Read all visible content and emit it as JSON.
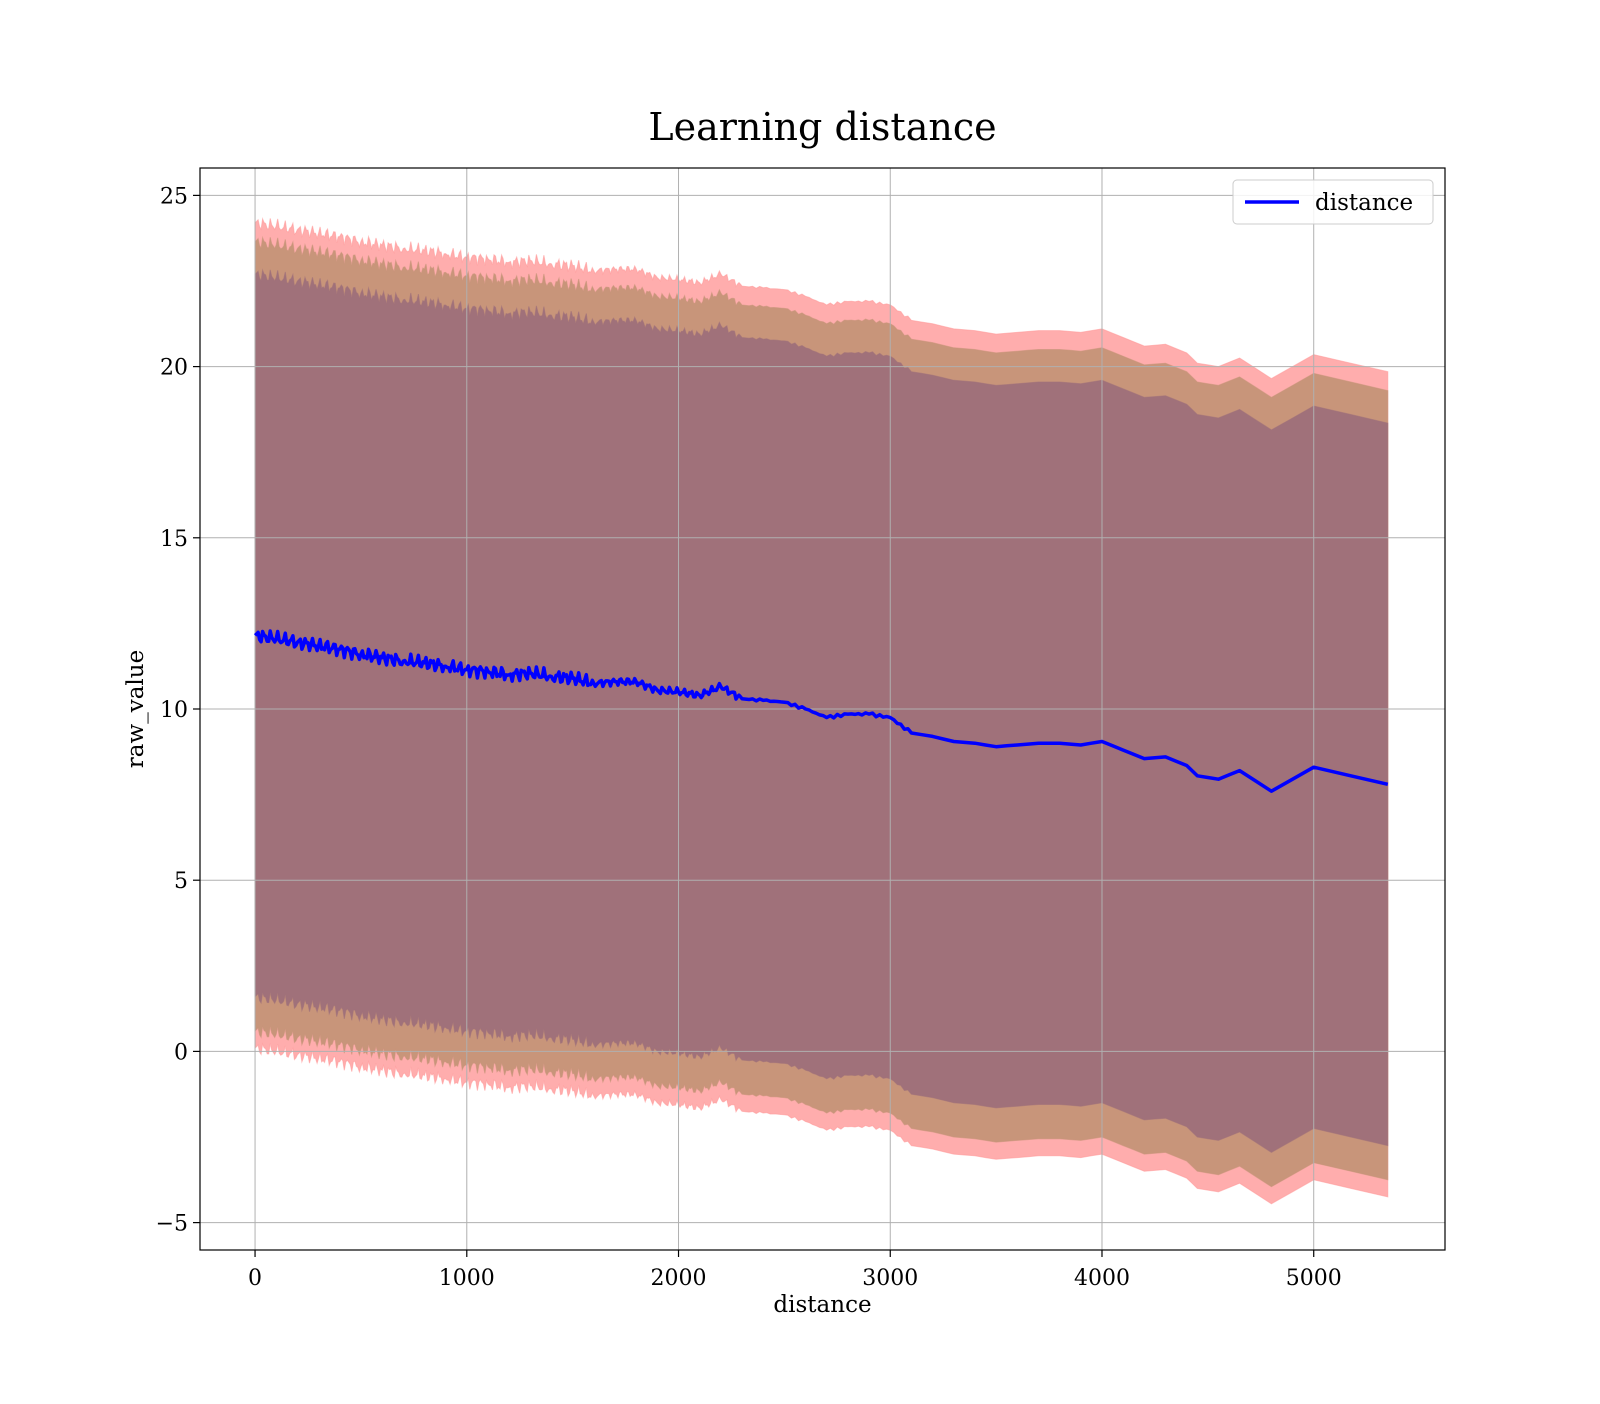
{
  "chart_data": {
    "type": "line",
    "title": "Learning distance",
    "xlabel": "distance",
    "ylabel": "raw_value",
    "xlim": [
      -260,
      5620
    ],
    "ylim": [
      -5.8,
      25.8
    ],
    "xticks": [
      0,
      1000,
      2000,
      3000,
      4000,
      5000
    ],
    "yticks": [
      -5,
      0,
      5,
      10,
      15,
      20,
      25
    ],
    "ytick_labels": [
      "−5",
      "0",
      "5",
      "10",
      "15",
      "20",
      "25"
    ],
    "grid": true,
    "legend": {
      "placement": "top-right",
      "entries": [
        "distance"
      ]
    },
    "colors": {
      "line": "#0000ff",
      "outer_band": "#ff9999",
      "middle_band": "#c8957a",
      "inner_band": "#a0717a",
      "grid": "#b0b0b0"
    },
    "series": [
      {
        "name": "distance",
        "x": [
          0,
          100,
          200,
          300,
          400,
          500,
          600,
          700,
          800,
          900,
          1000,
          1100,
          1200,
          1300,
          1400,
          1500,
          1600,
          1700,
          1800,
          1900,
          2000,
          2100,
          2200,
          2300,
          2400,
          2500,
          2600,
          2700,
          2800,
          2900,
          3000,
          3100,
          3200,
          3300,
          3400,
          3500,
          3600,
          3700,
          3800,
          3900,
          4000,
          4100,
          4200,
          4300,
          4400,
          4450,
          4550,
          4650,
          4800,
          5000,
          5350
        ],
        "y": [
          12.15,
          12.05,
          11.95,
          11.85,
          11.75,
          11.6,
          11.5,
          11.4,
          11.35,
          11.25,
          11.15,
          11.1,
          11.0,
          11.05,
          10.95,
          10.9,
          10.75,
          10.8,
          10.8,
          10.55,
          10.5,
          10.4,
          10.65,
          10.3,
          10.25,
          10.2,
          10.0,
          9.75,
          9.85,
          9.85,
          9.75,
          9.3,
          9.2,
          9.05,
          9.0,
          8.9,
          8.95,
          9.0,
          9.0,
          8.95,
          9.05,
          8.8,
          8.55,
          8.6,
          8.35,
          8.05,
          7.95,
          8.2,
          7.6,
          8.3,
          7.8
        ]
      }
    ],
    "bands": {
      "outer_upper_offset": 12.05,
      "outer_lower_offset": 12.05,
      "middle_upper_offset": 11.5,
      "middle_lower_offset": 11.55,
      "inner_upper_offset": 10.55,
      "inner_lower_offset": 10.55
    }
  }
}
